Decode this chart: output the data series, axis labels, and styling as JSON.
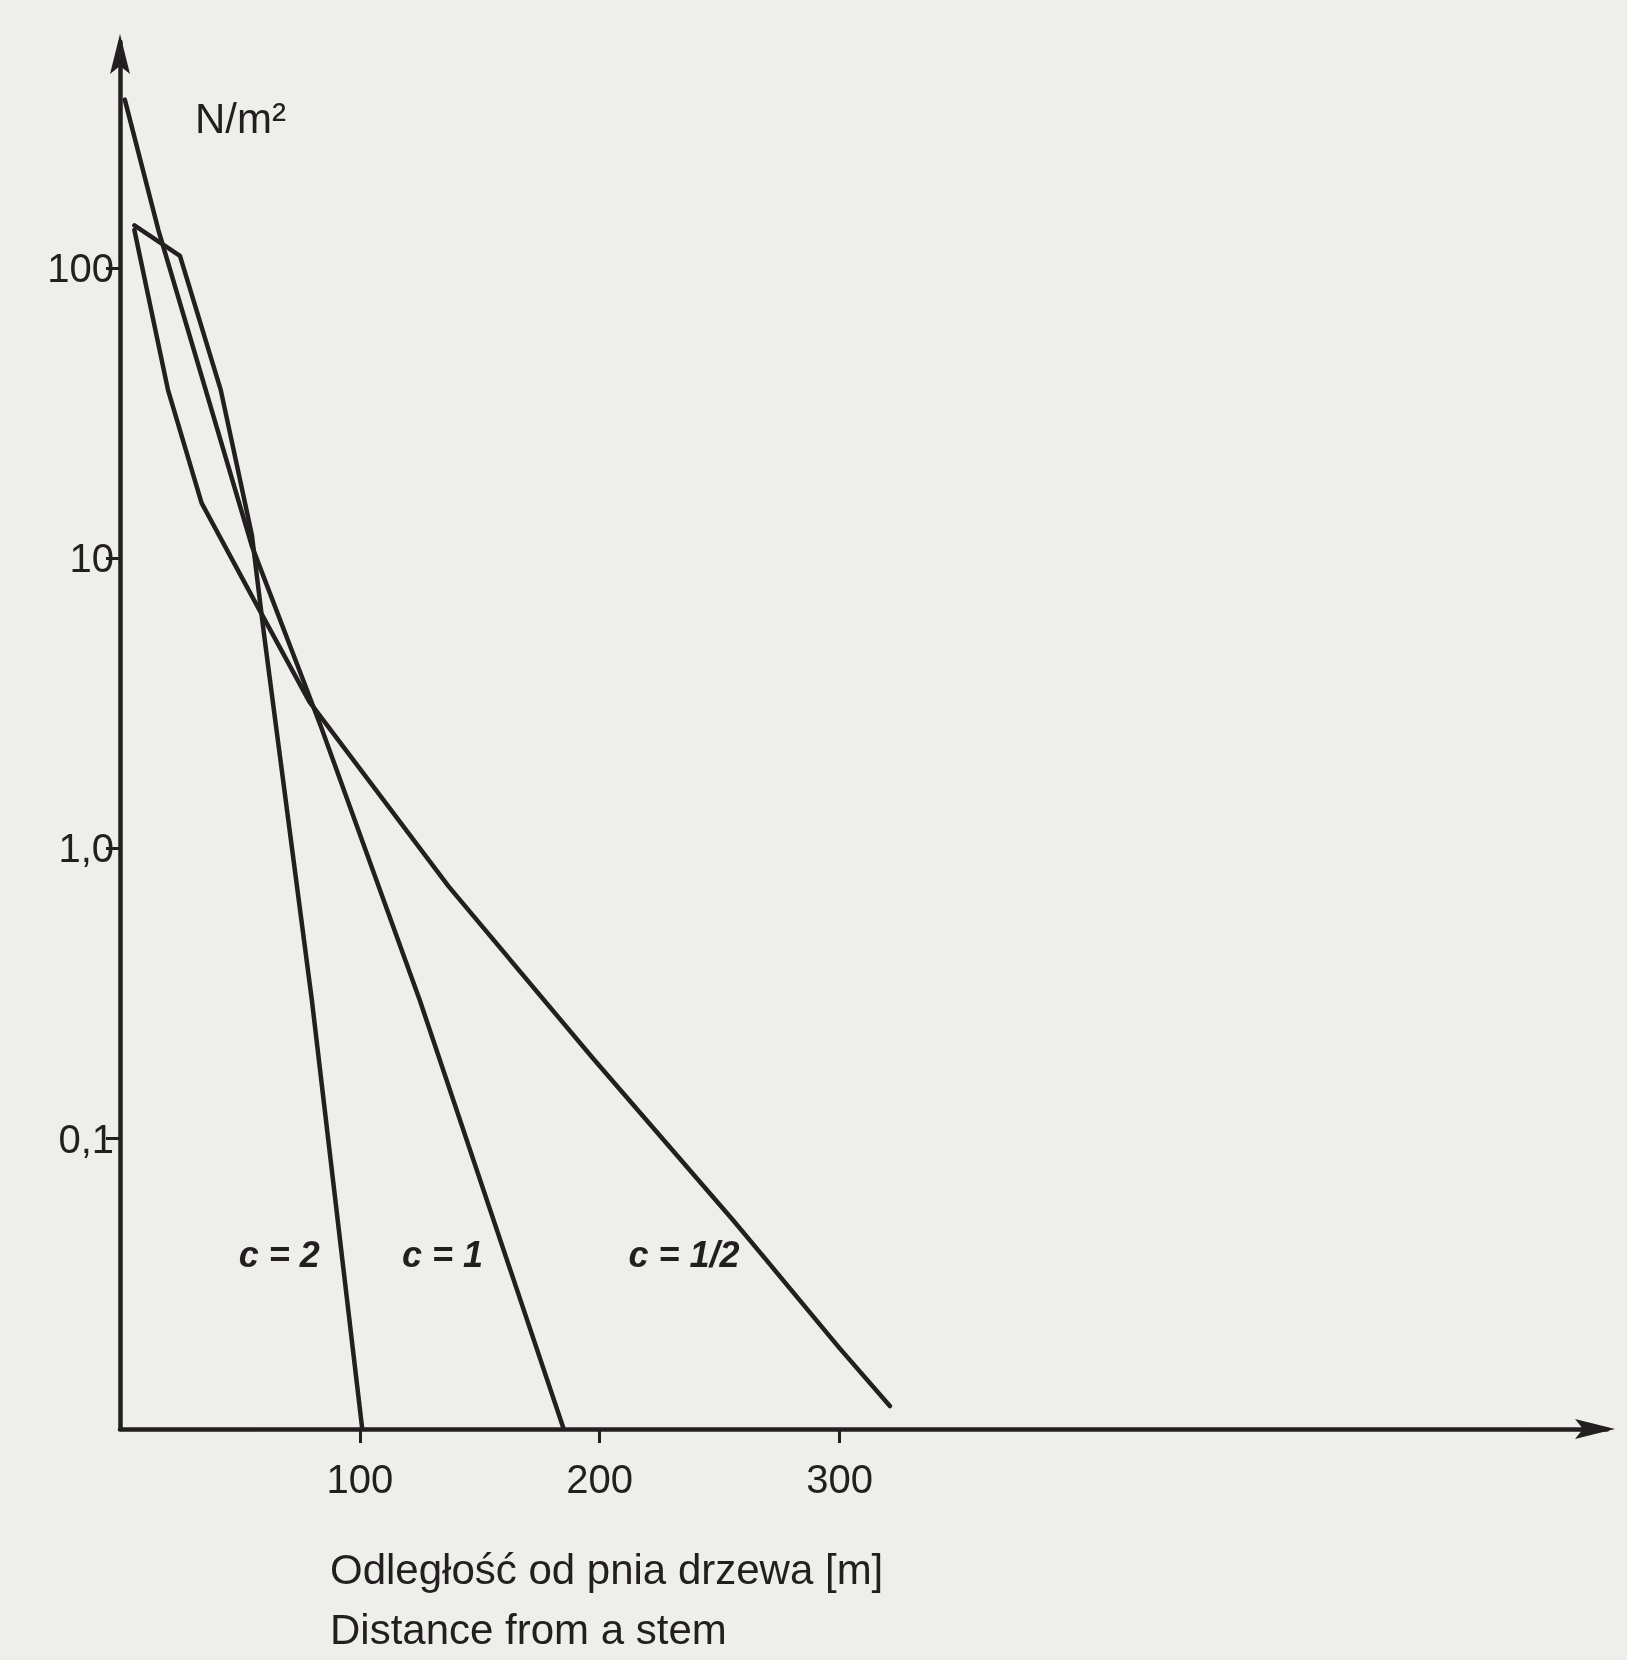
{
  "chart_data": {
    "type": "line",
    "ylabel": "N/m²",
    "xlabel": "Odległość od pnia drzewa [m]\nDistance from a stem",
    "log": "y",
    "grid": false,
    "legend": false,
    "marker": "none",
    "line_style": "solid",
    "xlim": [
      0,
      620
    ],
    "xticks": [
      100,
      200,
      300
    ],
    "ylim": [
      0.01,
      600
    ],
    "yticks": [
      100,
      10,
      {
        "value": 1,
        "label": "1,0"
      },
      {
        "value": 0.1,
        "label": "0,1"
      }
    ],
    "series": [
      {
        "name": "c = 2",
        "color": "#231f20",
        "x": [
          6,
          25,
          42,
          55,
          60,
          80,
          101
        ],
        "values": [
          140,
          110,
          38,
          12,
          5.5,
          0.3,
          0.01
        ]
      },
      {
        "name": "c = 1",
        "color": "#231f20",
        "x": [
          2,
          16,
          55,
          84,
          125,
          185
        ],
        "values": [
          380,
          135,
          11,
          2.6,
          0.3,
          0.01
        ]
      },
      {
        "name": "c = 1/2",
        "color": "#231f20",
        "x": [
          6,
          20,
          34,
          55,
          79,
          137,
          197,
          256,
          300,
          321
        ],
        "values": [
          135,
          38,
          15.5,
          7.4,
          3.2,
          0.74,
          0.19,
          0.052,
          0.019,
          0.012
        ]
      }
    ]
  }
}
